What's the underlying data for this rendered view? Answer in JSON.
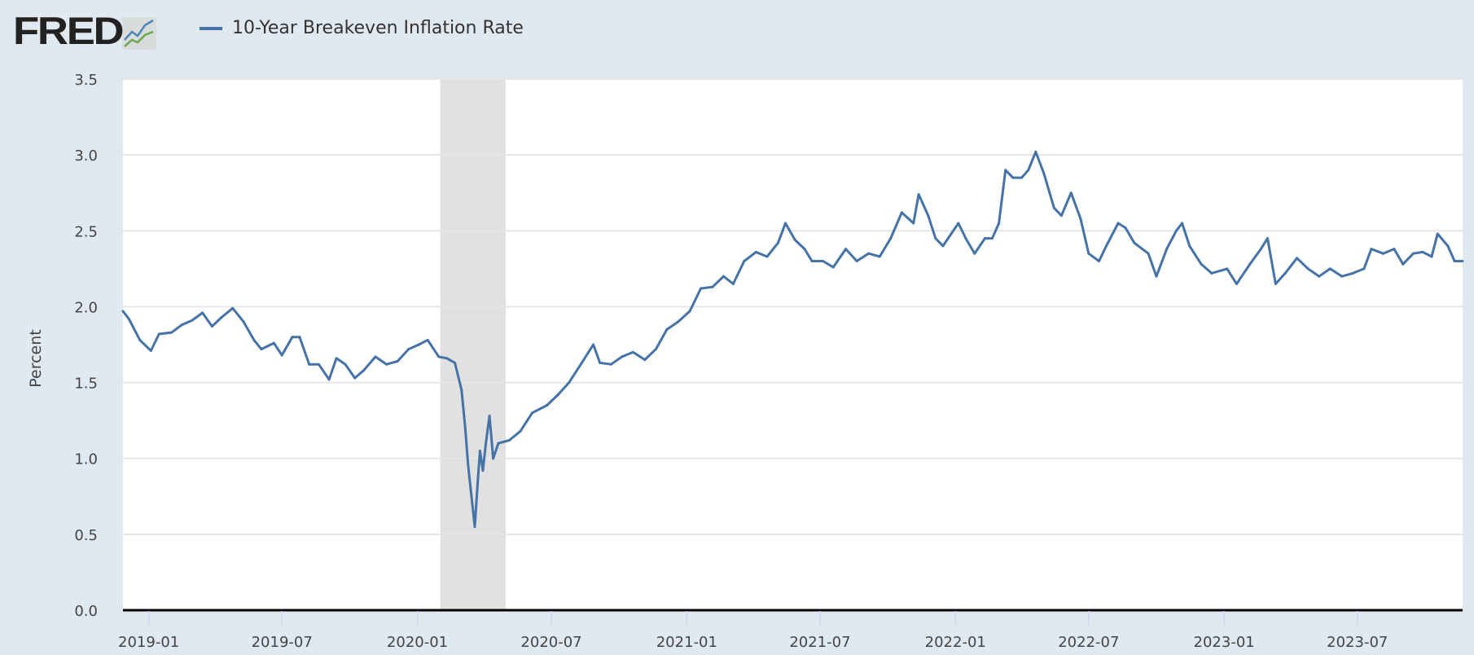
{
  "header": {
    "logo": "FRED",
    "legend_label": "10-Year Breakeven Inflation Rate"
  },
  "colors": {
    "series": "#4572a7",
    "recession": "#e1e1e1",
    "background": "#e1e9f0"
  },
  "chart_data": {
    "type": "line",
    "title": "10-Year Breakeven Inflation Rate",
    "xlabel": "",
    "ylabel": "Percent",
    "ylim": [
      0,
      3.5
    ],
    "xlim": [
      "2018-11-27",
      "2023-11-21"
    ],
    "yticks": [
      "0.0",
      "0.5",
      "1.0",
      "1.5",
      "2.0",
      "2.5",
      "3.0",
      "3.5"
    ],
    "xticks": [
      "2019-01",
      "2019-07",
      "2020-01",
      "2020-07",
      "2021-01",
      "2021-07",
      "2022-01",
      "2022-07",
      "2023-01",
      "2023-07"
    ],
    "grid": true,
    "legend_position": "top-left",
    "recession": [
      "2020-02-01",
      "2020-04-30"
    ],
    "series": [
      {
        "name": "10-Year Breakeven Inflation Rate",
        "x": [
          "2018-11-27",
          "2018-12-05",
          "2018-12-20",
          "2019-01-04",
          "2019-01-15",
          "2019-02-01",
          "2019-02-15",
          "2019-03-01",
          "2019-03-15",
          "2019-03-28",
          "2019-04-10",
          "2019-04-25",
          "2019-05-10",
          "2019-05-24",
          "2019-06-03",
          "2019-06-20",
          "2019-07-01",
          "2019-07-15",
          "2019-07-25",
          "2019-08-07",
          "2019-08-20",
          "2019-09-03",
          "2019-09-13",
          "2019-09-25",
          "2019-10-08",
          "2019-10-20",
          "2019-11-05",
          "2019-11-20",
          "2019-12-05",
          "2019-12-20",
          "2020-01-03",
          "2020-01-15",
          "2020-01-30",
          "2020-02-10",
          "2020-02-21",
          "2020-03-01",
          "2020-03-06",
          "2020-03-10",
          "2020-03-19",
          "2020-03-23",
          "2020-03-26",
          "2020-03-30",
          "2020-04-03",
          "2020-04-08",
          "2020-04-13",
          "2020-04-20",
          "2020-05-05",
          "2020-05-20",
          "2020-06-05",
          "2020-06-25",
          "2020-07-10",
          "2020-07-25",
          "2020-08-10",
          "2020-08-27",
          "2020-09-05",
          "2020-09-20",
          "2020-10-05",
          "2020-10-20",
          "2020-11-05",
          "2020-11-20",
          "2020-12-05",
          "2020-12-20",
          "2021-01-05",
          "2021-01-20",
          "2021-02-05",
          "2021-02-20",
          "2021-03-05",
          "2021-03-20",
          "2021-04-05",
          "2021-04-20",
          "2021-05-05",
          "2021-05-15",
          "2021-05-28",
          "2021-06-10",
          "2021-06-20",
          "2021-07-05",
          "2021-07-19",
          "2021-08-05",
          "2021-08-20",
          "2021-09-05",
          "2021-09-20",
          "2021-10-05",
          "2021-10-20",
          "2021-11-05",
          "2021-11-12",
          "2021-11-25",
          "2021-12-05",
          "2021-12-15",
          "2022-01-05",
          "2022-01-15",
          "2022-01-27",
          "2022-02-10",
          "2022-02-20",
          "2022-03-01",
          "2022-03-10",
          "2022-03-20",
          "2022-04-01",
          "2022-04-10",
          "2022-04-20",
          "2022-05-01",
          "2022-05-15",
          "2022-05-25",
          "2022-06-07",
          "2022-06-20",
          "2022-07-01",
          "2022-07-15",
          "2022-07-25",
          "2022-08-10",
          "2022-08-20",
          "2022-09-01",
          "2022-09-20",
          "2022-10-01",
          "2022-10-15",
          "2022-10-28",
          "2022-11-05",
          "2022-11-15",
          "2022-12-01",
          "2022-12-15",
          "2023-01-05",
          "2023-01-18",
          "2023-02-05",
          "2023-02-20",
          "2023-03-01",
          "2023-03-12",
          "2023-03-25",
          "2023-04-10",
          "2023-04-25",
          "2023-05-10",
          "2023-05-25",
          "2023-06-10",
          "2023-06-25",
          "2023-07-10",
          "2023-07-20",
          "2023-08-05",
          "2023-08-20",
          "2023-09-01",
          "2023-09-15",
          "2023-09-28",
          "2023-10-10",
          "2023-10-18",
          "2023-11-01",
          "2023-11-10",
          "2023-11-21"
        ],
        "y": [
          1.97,
          1.92,
          1.78,
          1.71,
          1.82,
          1.83,
          1.88,
          1.91,
          1.96,
          1.87,
          1.93,
          1.99,
          1.9,
          1.78,
          1.72,
          1.76,
          1.68,
          1.8,
          1.8,
          1.62,
          1.62,
          1.52,
          1.66,
          1.62,
          1.53,
          1.58,
          1.67,
          1.62,
          1.64,
          1.72,
          1.75,
          1.78,
          1.67,
          1.66,
          1.63,
          1.45,
          1.2,
          0.95,
          0.55,
          0.85,
          1.05,
          0.92,
          1.1,
          1.28,
          1.0,
          1.1,
          1.12,
          1.18,
          1.3,
          1.35,
          1.42,
          1.5,
          1.62,
          1.75,
          1.63,
          1.62,
          1.67,
          1.7,
          1.65,
          1.72,
          1.85,
          1.9,
          1.97,
          2.12,
          2.13,
          2.2,
          2.15,
          2.3,
          2.36,
          2.33,
          2.42,
          2.55,
          2.44,
          2.38,
          2.3,
          2.3,
          2.26,
          2.38,
          2.3,
          2.35,
          2.33,
          2.45,
          2.62,
          2.55,
          2.74,
          2.6,
          2.45,
          2.4,
          2.55,
          2.45,
          2.35,
          2.45,
          2.45,
          2.55,
          2.9,
          2.85,
          2.85,
          2.9,
          3.02,
          2.88,
          2.65,
          2.6,
          2.75,
          2.58,
          2.35,
          2.3,
          2.4,
          2.55,
          2.52,
          2.42,
          2.35,
          2.2,
          2.38,
          2.5,
          2.55,
          2.4,
          2.28,
          2.22,
          2.25,
          2.15,
          2.28,
          2.38,
          2.45,
          2.15,
          2.22,
          2.32,
          2.25,
          2.2,
          2.25,
          2.2,
          2.22,
          2.25,
          2.38,
          2.35,
          2.38,
          2.28,
          2.35,
          2.36,
          2.33,
          2.48,
          2.4,
          2.3,
          2.3
        ]
      }
    ]
  }
}
